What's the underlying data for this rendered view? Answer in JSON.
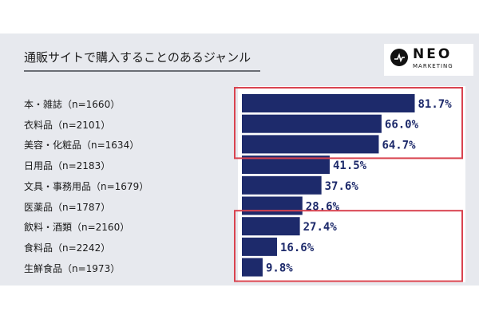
{
  "header": {
    "title": "通販サイトで購入することのあるジャンル",
    "logo_main": "NEO",
    "logo_sub": "MARKETING",
    "logo_icon": "pulse-circle-icon"
  },
  "colors": {
    "bar": "#1d2a6b",
    "value_text": "#1d2a6b",
    "highlight_box": "#d9434f",
    "panel": "#e7e9ee"
  },
  "chart_data": {
    "type": "bar",
    "orientation": "horizontal",
    "categories": [
      "本・雑誌（n=1660）",
      "衣料品（n=2101）",
      "美容・化粧品（n=1634）",
      "日用品（n=2183）",
      "文具・事務用品（n=1679）",
      "医薬品（n=1787）",
      "飲料・酒類（n=2160）",
      "食料品（n=2242）",
      "生鮮食品（n=1973）"
    ],
    "values": [
      81.7,
      66.0,
      64.7,
      41.5,
      37.6,
      28.6,
      27.4,
      16.6,
      9.8
    ],
    "value_labels": [
      "81.7%",
      "66.0%",
      "64.7%",
      "41.5%",
      "37.6%",
      "28.6%",
      "27.4%",
      "16.6%",
      "9.8%"
    ],
    "xlim": [
      0,
      100
    ],
    "grid": false,
    "highlight_groups": [
      [
        0,
        2
      ],
      [
        6,
        8
      ]
    ]
  }
}
